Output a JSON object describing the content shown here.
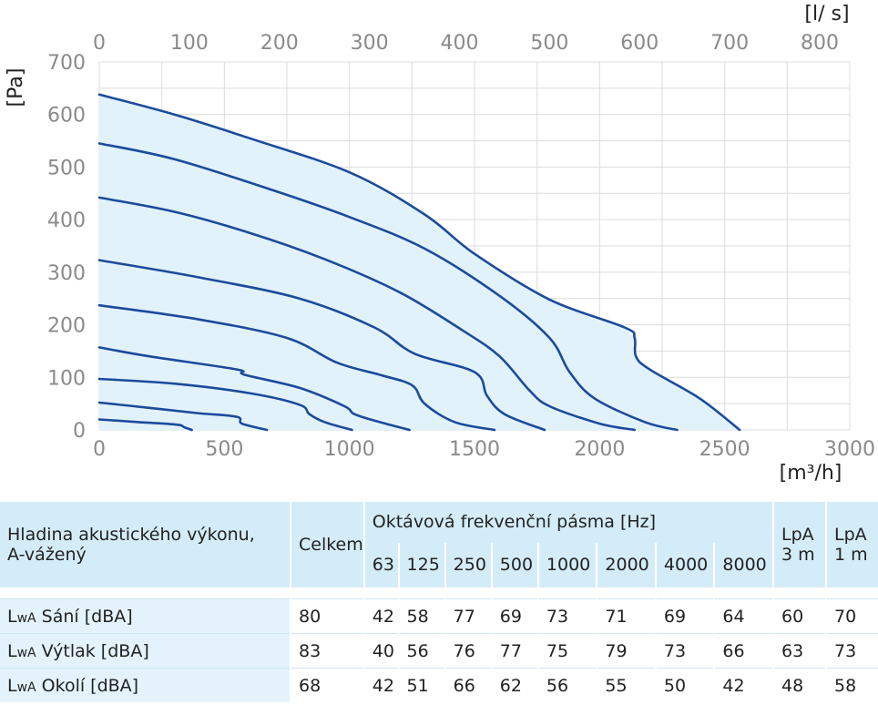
{
  "chart_data": {
    "type": "line",
    "x_bottom": {
      "label": "[m³/h]",
      "ticks": [
        0,
        500,
        1000,
        1500,
        2000,
        2500,
        3000
      ],
      "range": [
        0,
        3000
      ]
    },
    "x_top": {
      "label": "[l/ s]",
      "ticks": [
        0,
        100,
        200,
        300,
        400,
        500,
        600,
        700,
        800
      ]
    },
    "y": {
      "label": "[Pa]",
      "ticks": [
        0,
        100,
        200,
        300,
        400,
        500,
        600,
        700
      ],
      "range": [
        0,
        700
      ]
    },
    "grid": true,
    "series": [
      {
        "points": [
          [
            0,
            638
          ],
          [
            300,
            600
          ],
          [
            600,
            555
          ],
          [
            1000,
            490
          ],
          [
            1300,
            410
          ],
          [
            1500,
            335
          ],
          [
            1800,
            248
          ],
          [
            2100,
            195
          ],
          [
            2140,
            175
          ],
          [
            2145,
            140
          ],
          [
            2200,
            115
          ],
          [
            2400,
            60
          ],
          [
            2560,
            0
          ]
        ]
      },
      {
        "points": [
          [
            0,
            545
          ],
          [
            300,
            515
          ],
          [
            700,
            455
          ],
          [
            1000,
            405
          ],
          [
            1300,
            345
          ],
          [
            1600,
            255
          ],
          [
            1800,
            175
          ],
          [
            1880,
            110
          ],
          [
            1980,
            60
          ],
          [
            2180,
            15
          ],
          [
            2310,
            0
          ]
        ]
      },
      {
        "points": [
          [
            0,
            442
          ],
          [
            300,
            415
          ],
          [
            600,
            375
          ],
          [
            900,
            325
          ],
          [
            1200,
            262
          ],
          [
            1450,
            190
          ],
          [
            1600,
            140
          ],
          [
            1720,
            75
          ],
          [
            1800,
            45
          ],
          [
            2000,
            12
          ],
          [
            2140,
            0
          ]
        ]
      },
      {
        "points": [
          [
            0,
            323
          ],
          [
            400,
            290
          ],
          [
            800,
            250
          ],
          [
            1100,
            195
          ],
          [
            1260,
            145
          ],
          [
            1500,
            110
          ],
          [
            1550,
            65
          ],
          [
            1620,
            30
          ],
          [
            1780,
            0
          ]
        ]
      },
      {
        "points": [
          [
            0,
            237
          ],
          [
            400,
            210
          ],
          [
            750,
            175
          ],
          [
            950,
            128
          ],
          [
            1120,
            105
          ],
          [
            1250,
            85
          ],
          [
            1300,
            50
          ],
          [
            1420,
            15
          ],
          [
            1580,
            0
          ]
        ]
      },
      {
        "points": [
          [
            0,
            157
          ],
          [
            200,
            140
          ],
          [
            550,
            115
          ],
          [
            580,
            105
          ],
          [
            800,
            80
          ],
          [
            980,
            45
          ],
          [
            1020,
            30
          ],
          [
            1120,
            15
          ],
          [
            1240,
            0
          ]
        ]
      },
      {
        "points": [
          [
            0,
            97
          ],
          [
            300,
            88
          ],
          [
            600,
            70
          ],
          [
            800,
            48
          ],
          [
            840,
            30
          ],
          [
            900,
            15
          ],
          [
            1010,
            0
          ]
        ]
      },
      {
        "points": [
          [
            0,
            52
          ],
          [
            200,
            42
          ],
          [
            390,
            32
          ],
          [
            550,
            25
          ],
          [
            570,
            12
          ],
          [
            670,
            0
          ]
        ]
      },
      {
        "points": [
          [
            0,
            20
          ],
          [
            150,
            15
          ],
          [
            310,
            10
          ],
          [
            340,
            5
          ],
          [
            370,
            0
          ]
        ]
      }
    ]
  },
  "table": {
    "header_title": "Hladina akustického výkonu, A-vážený",
    "header_total": "Celkem",
    "header_band": "Oktávová frekvenční pásma [Hz]",
    "freqs": [
      "63",
      "125",
      "250",
      "500",
      "1000",
      "2000",
      "4000",
      "8000"
    ],
    "lpa3": "LpA 3 m",
    "lpa1": "LpA 1 m",
    "rows": [
      {
        "prefix": "L",
        "sub": "wA",
        "label": " Sání [dBA]",
        "total": "80",
        "bands": [
          "42",
          "58",
          "77",
          "69",
          "73",
          "71",
          "69",
          "64"
        ],
        "lpa3": "60",
        "lpa1": "70"
      },
      {
        "prefix": "L",
        "sub": "wA",
        "label": " Výtlak [dBA]",
        "total": "83",
        "bands": [
          "40",
          "56",
          "76",
          "77",
          "75",
          "79",
          "73",
          "66"
        ],
        "lpa3": "63",
        "lpa1": "73"
      },
      {
        "prefix": "L",
        "sub": "wA",
        "label": " Okolí [dBA]",
        "total": "68",
        "bands": [
          "42",
          "51",
          "66",
          "62",
          "56",
          "55",
          "50",
          "42"
        ],
        "lpa3": "48",
        "lpa1": "58"
      }
    ]
  },
  "colors": {
    "curve": "#1b4b9b",
    "fill": "#e2f2fb",
    "grid": "#dcdcdc",
    "table_header": "#d4ecf8"
  }
}
